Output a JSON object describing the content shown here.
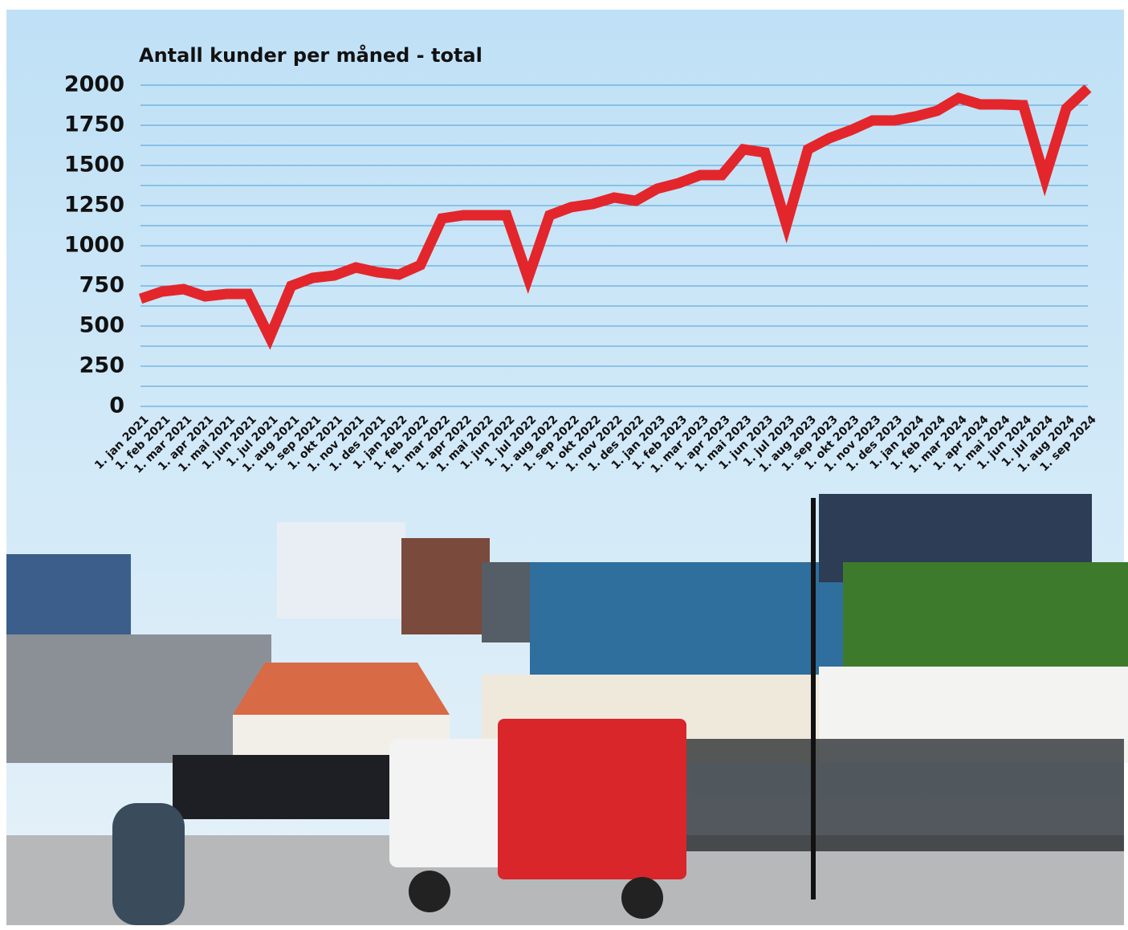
{
  "chart_data": {
    "type": "line",
    "title": "Antall kunder per måned - total",
    "categories": [
      "1. jan 2021",
      "1. feb 2021",
      "1. mar 2021",
      "1. apr 2021",
      "1. mai 2021",
      "1. jun 2021",
      "1. jul 2021",
      "1. aug 2021",
      "1. sep 2021",
      "1. okt 2021",
      "1. nov 2021",
      "1. des 2021",
      "1. jan 2022",
      "1. feb 2022",
      "1. mar 2022",
      "1. apr 2022",
      "1. mai 2022",
      "1. jun 2022",
      "1. jul 2022",
      "1. aug 2022",
      "1. sep 2022",
      "1. okt 2022",
      "1. nov 2022",
      "1. des 2022",
      "1. jan 2023",
      "1. feb 2023",
      "1. mar 2023",
      "1. apr 2023",
      "1. mai 2023",
      "1. jun 2023",
      "1. jul 2023",
      "1. aug 2023",
      "1. sep 2023",
      "1. okt 2023",
      "1. nov 2023",
      "1. des 2023",
      "1. jan 2024",
      "1. feb 2024",
      "1. mar 2024",
      "1. apr 2024",
      "1. mai 2024",
      "1. jun 2024",
      "1. jul 2024",
      "1. aug 2024",
      "1. sep 2024"
    ],
    "values": [
      670,
      715,
      730,
      685,
      700,
      700,
      430,
      750,
      800,
      815,
      865,
      835,
      820,
      880,
      1170,
      1190,
      1190,
      1190,
      800,
      1190,
      1240,
      1260,
      1300,
      1280,
      1355,
      1390,
      1440,
      1440,
      1600,
      1580,
      1130,
      1600,
      1670,
      1720,
      1780,
      1780,
      1805,
      1840,
      1920,
      1880,
      1880,
      1875,
      1420,
      1855,
      1980
    ],
    "color": "#e3262b",
    "ylim": [
      0,
      2000
    ],
    "yticks": [
      0,
      250,
      500,
      750,
      1000,
      1250,
      1500,
      1750,
      2000
    ],
    "grid": true
  }
}
